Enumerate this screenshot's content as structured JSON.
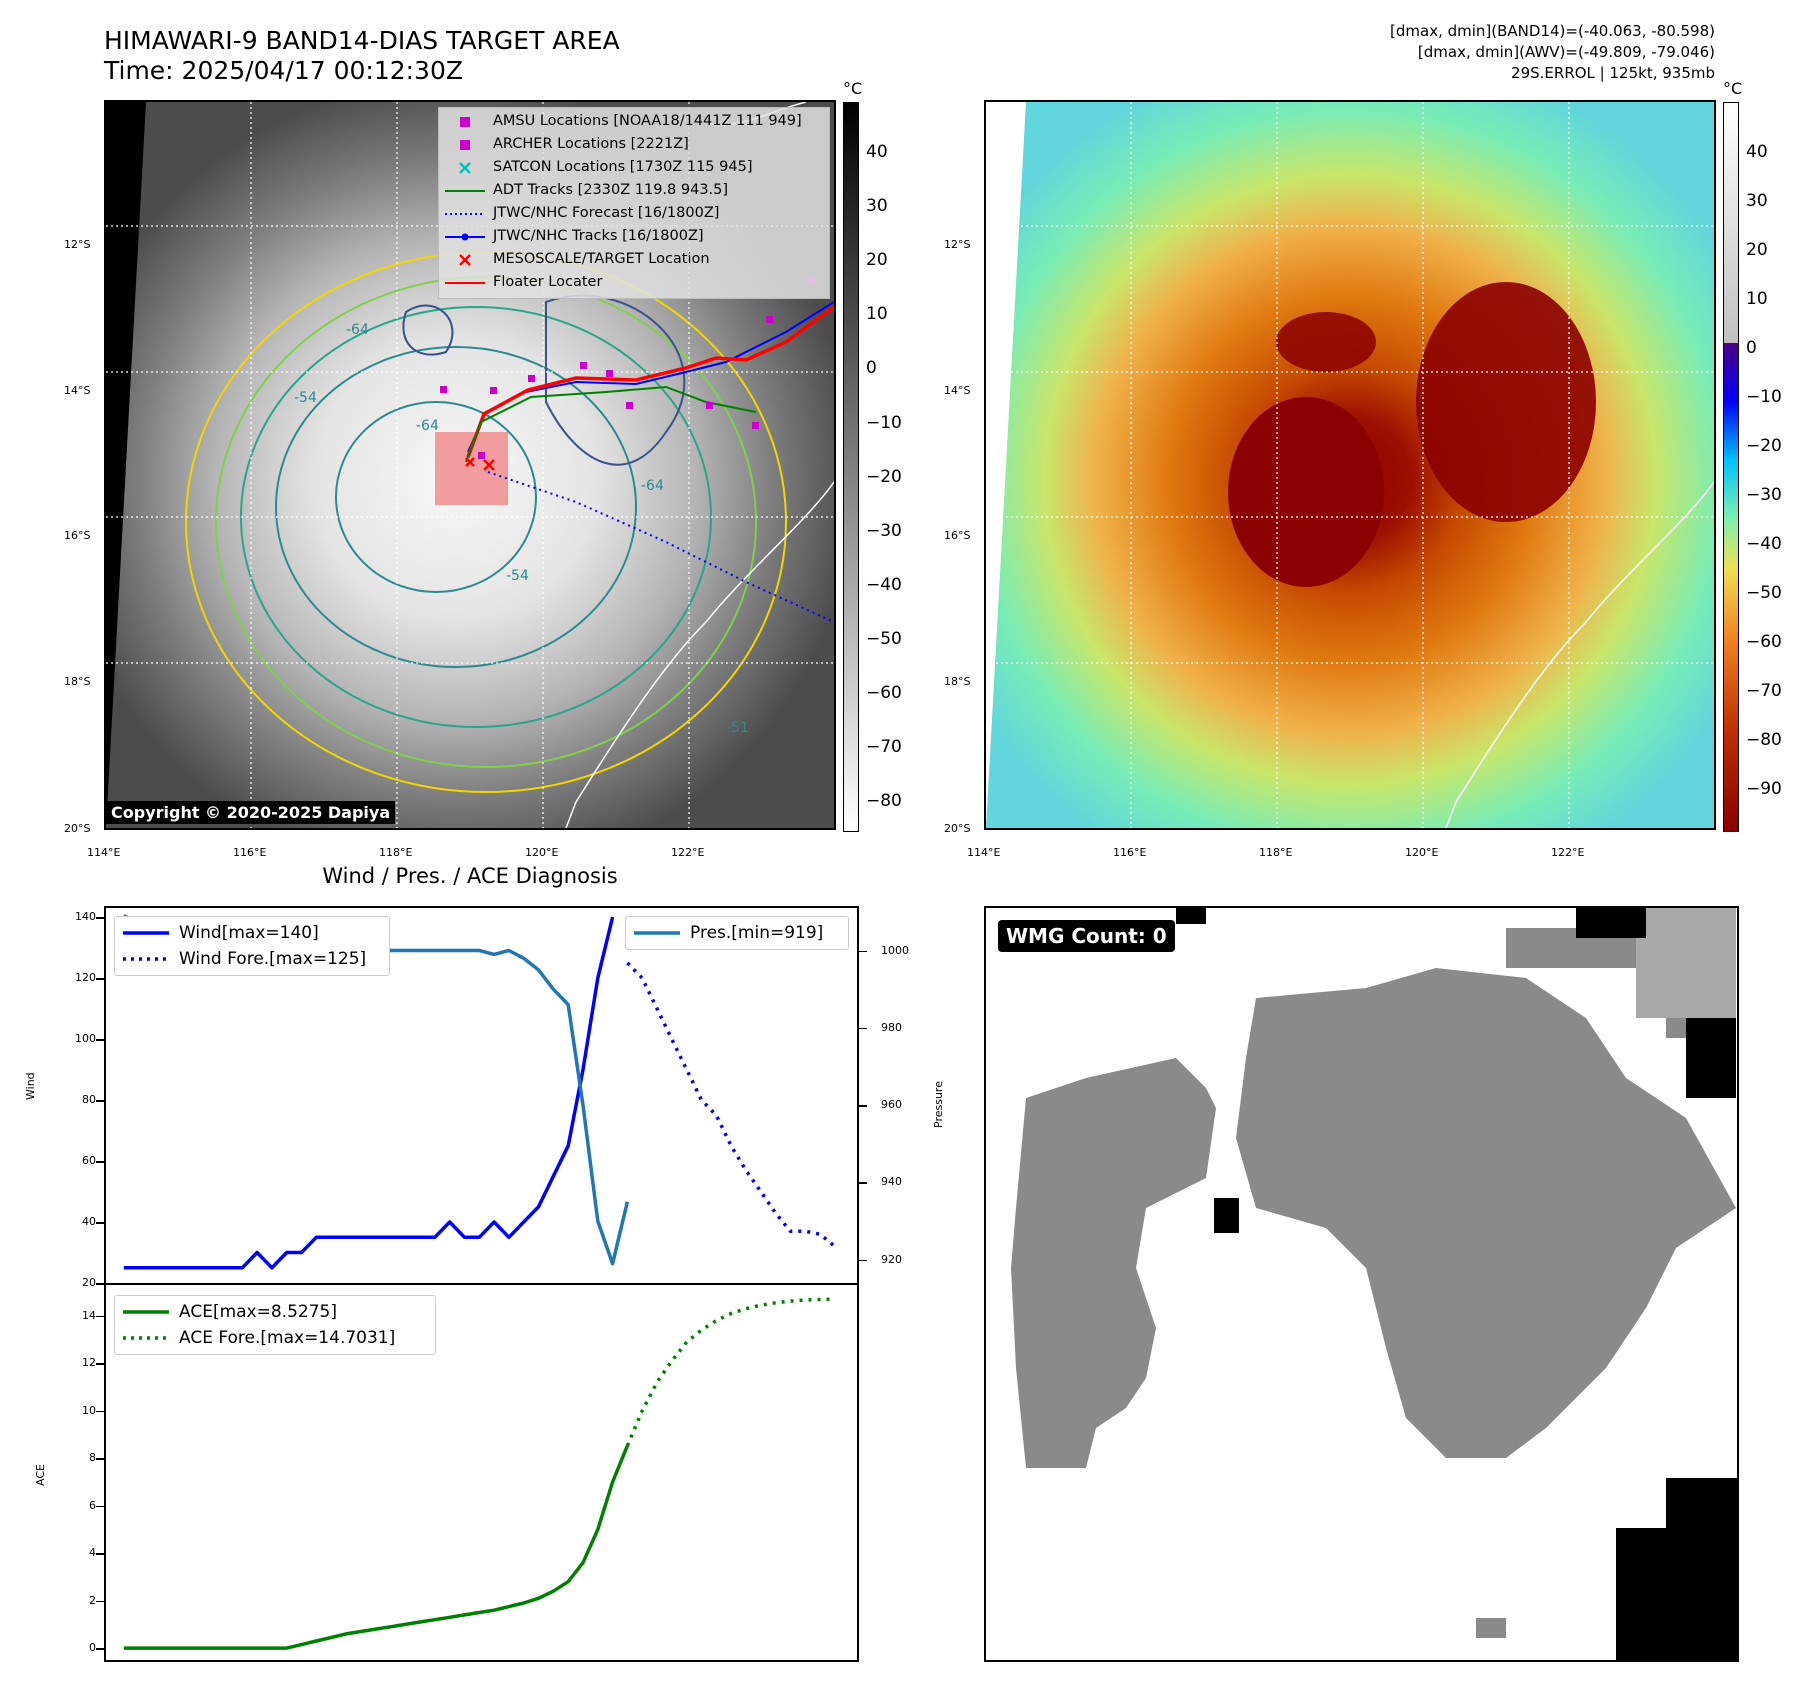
{
  "header": {
    "title_line1": "HIMAWARI-9 BAND14-DIAS TARGET AREA",
    "title_line2": "Time: 2025/04/17 00:12:30Z",
    "info_line1": "[dmax, dmin](BAND14)=(-40.063, -80.598)",
    "info_line2": "[dmax, dmin](AWV)=(-49.809, -79.046)",
    "info_line3": "29S.ERROL | 125kt, 935mb"
  },
  "map_axes": {
    "lat_labels": [
      "12°S",
      "14°S",
      "16°S",
      "18°S",
      "20°S"
    ],
    "lon_labels": [
      "114°E",
      "116°E",
      "118°E",
      "120°E",
      "122°E"
    ]
  },
  "left_map": {
    "copyright": "Copyright © 2020-2025 Dapiya",
    "contour_labels": [
      "-64",
      "-54",
      "-64",
      "-54",
      "-64",
      "-51"
    ],
    "legend": [
      {
        "label": "AMSU Locations [NOAA18/1441Z 111 949]",
        "symbol": "square",
        "color": "#cc00cc"
      },
      {
        "label": "ARCHER Locations [2221Z]",
        "symbol": "square",
        "color": "#cc00cc"
      },
      {
        "label": "SATCON Locations [1730Z 115 945]",
        "symbol": "x",
        "color": "#00bfbf"
      },
      {
        "label": "ADT Tracks [2330Z 119.8 943.5]",
        "symbol": "line",
        "color": "#008000"
      },
      {
        "label": "JTWC/NHC Forecast [16/1800Z]",
        "symbol": "dotted",
        "color": "#0000ff"
      },
      {
        "label": "JTWC/NHC Tracks [16/1800Z]",
        "symbol": "line-dot",
        "color": "#0000ff"
      },
      {
        "label": "MESOSCALE/TARGET Location",
        "symbol": "x",
        "color": "#ff0000"
      },
      {
        "label": "Floater Locater",
        "symbol": "line",
        "color": "#ff0000"
      }
    ]
  },
  "colorbar_left": {
    "unit": "°C",
    "ticks": [
      "40",
      "30",
      "20",
      "10",
      "0",
      "−10",
      "−20",
      "−30",
      "−40",
      "−50",
      "−60",
      "−70",
      "−80"
    ]
  },
  "colorbar_right": {
    "unit": "°C",
    "ticks": [
      "40",
      "30",
      "20",
      "10",
      "0",
      "−10",
      "−20",
      "−30",
      "−40",
      "−50",
      "−60",
      "−70",
      "−80",
      "−90"
    ]
  },
  "diagnosis": {
    "title": "Wind / Pres. / ACE Diagnosis",
    "wind_ylabel": "Wind",
    "pres_ylabel": "Pressure",
    "ace_ylabel": "ACE",
    "wind_legend": [
      "Wind[max=140]",
      "Wind Fore.[max=125]"
    ],
    "pres_legend": "Pres.[min=919]",
    "ace_legend": [
      "ACE[max=8.5275]",
      "ACE Fore.[max=14.7031]"
    ],
    "wind_ticks": [
      "140",
      "120",
      "100",
      "80",
      "60",
      "40",
      "20"
    ],
    "pres_ticks": [
      "1000",
      "980",
      "960",
      "940",
      "920"
    ],
    "ace_ticks": [
      "14",
      "12",
      "10",
      "8",
      "6",
      "4",
      "2",
      "0"
    ]
  },
  "wmg": {
    "label": "WMG Count: 0"
  },
  "chart_data": [
    {
      "type": "line",
      "title": "Wind / Pres. / ACE Diagnosis — Wind & Pressure",
      "ylabel": "Wind",
      "y2label": "Pressure",
      "ylim": [
        20,
        143
      ],
      "y2lim": [
        914,
        1011
      ],
      "x": [
        0,
        1,
        2,
        3,
        4,
        5,
        6,
        7,
        8,
        9,
        10,
        11,
        12,
        13,
        14,
        15,
        16,
        17,
        18,
        19,
        20,
        21,
        22,
        23,
        24,
        25,
        26,
        27,
        28,
        29,
        30,
        31,
        32,
        33,
        34,
        35,
        36,
        37,
        38,
        39,
        40,
        41,
        42,
        43,
        44,
        45,
        46,
        47,
        48
      ],
      "series": [
        {
          "name": "Wind",
          "axis": "left",
          "color": "#0000ff",
          "x": [
            0,
            1,
            2,
            3,
            4,
            5,
            6,
            7,
            8,
            9,
            10,
            11,
            12,
            13,
            14,
            15,
            16,
            17,
            18,
            19,
            20,
            21,
            22,
            23,
            24,
            25,
            26,
            27,
            28,
            29,
            30,
            31,
            32,
            33
          ],
          "values": [
            25,
            25,
            25,
            25,
            25,
            25,
            25,
            25,
            25,
            30,
            25,
            30,
            30,
            35,
            35,
            35,
            35,
            35,
            35,
            35,
            35,
            35,
            40,
            35,
            35,
            40,
            35,
            40,
            45,
            55,
            65,
            90,
            120,
            140
          ]
        },
        {
          "name": "Wind Fore.",
          "axis": "left",
          "color": "#0000ff",
          "style": "dotted",
          "x": [
            34,
            35,
            36,
            37,
            38,
            39,
            40,
            41,
            42,
            43,
            44,
            45,
            46,
            47,
            48
          ],
          "values": [
            125,
            120,
            110,
            100,
            90,
            80,
            75,
            65,
            57,
            50,
            43,
            37,
            37,
            36,
            32
          ]
        },
        {
          "name": "Pres.",
          "axis": "right",
          "color": "#1f77b4",
          "x": [
            0,
            1,
            2,
            3,
            4,
            5,
            6,
            7,
            8,
            9,
            10,
            11,
            12,
            13,
            14,
            15,
            16,
            17,
            18,
            19,
            20,
            21,
            22,
            23,
            24,
            25,
            26,
            27,
            28,
            29,
            30,
            31,
            32,
            33,
            34
          ],
          "values": [
            1009,
            1007,
            1007,
            1006,
            1005,
            1002,
            1001,
            1000,
            1001,
            1000,
            1000,
            1000,
            1000,
            1000,
            1000,
            1000,
            1000,
            1000,
            1000,
            1000,
            1000,
            1000,
            1000,
            1000,
            1000,
            999,
            1000,
            998,
            995,
            990,
            986,
            960,
            930,
            919,
            935
          ]
        }
      ]
    },
    {
      "type": "line",
      "title": "ACE",
      "ylabel": "ACE",
      "ylim": [
        -0.5,
        15.3
      ],
      "series": [
        {
          "name": "ACE",
          "color": "#008000",
          "x": [
            0,
            1,
            2,
            3,
            4,
            5,
            6,
            7,
            8,
            9,
            10,
            11,
            12,
            13,
            14,
            15,
            16,
            17,
            18,
            19,
            20,
            21,
            22,
            23,
            24,
            25,
            26,
            27,
            28,
            29,
            30,
            31,
            32,
            33,
            34
          ],
          "values": [
            0,
            0,
            0,
            0,
            0,
            0,
            0,
            0,
            0,
            0,
            0,
            0,
            0.15,
            0.3,
            0.45,
            0.6,
            0.7,
            0.8,
            0.9,
            1.0,
            1.1,
            1.2,
            1.3,
            1.4,
            1.5,
            1.6,
            1.75,
            1.9,
            2.1,
            2.4,
            2.8,
            3.6,
            5.0,
            7.0,
            8.5275
          ]
        },
        {
          "name": "ACE Fore.",
          "color": "#008000",
          "style": "dotted",
          "x": [
            34,
            35,
            36,
            37,
            38,
            39,
            40,
            41,
            42,
            43,
            44,
            45,
            46,
            47,
            48
          ],
          "values": [
            8.5275,
            10.0,
            11.2,
            12.1,
            12.9,
            13.4,
            13.8,
            14.1,
            14.3,
            14.45,
            14.55,
            14.62,
            14.67,
            14.69,
            14.7031
          ]
        }
      ]
    }
  ]
}
